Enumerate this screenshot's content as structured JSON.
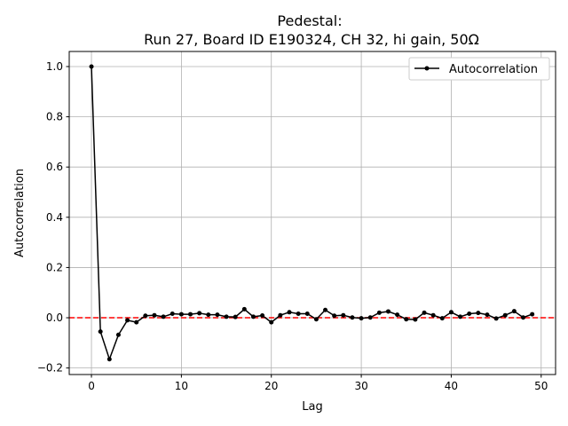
{
  "chart_data": {
    "type": "line",
    "title": "Pedestal:",
    "subtitle": "Run 27, Board ID E190324, CH 32, hi gain, 50Ω",
    "xlabel": "Lag",
    "ylabel": "Autocorrelation",
    "xlim": [
      -2.47,
      51.6
    ],
    "ylim": [
      -0.226,
      1.06
    ],
    "xticks": [
      0,
      10,
      20,
      30,
      40,
      50
    ],
    "xtick_labels": [
      "0",
      "10",
      "20",
      "30",
      "40",
      "50"
    ],
    "yticks": [
      -0.2,
      0.0,
      0.2,
      0.4,
      0.6,
      0.8,
      1.0
    ],
    "ytick_labels": [
      "−0.2",
      "0.0",
      "0.2",
      "0.4",
      "0.6",
      "0.8",
      "1.0"
    ],
    "grid": true,
    "legend_placement": "top-right",
    "reference_line": {
      "y": 0,
      "color": "#ff0000",
      "style": "dashed"
    },
    "series": [
      {
        "name": "Autocorrelation",
        "color": "#000000",
        "x": [
          0,
          1,
          2,
          3,
          4,
          5,
          6,
          7,
          8,
          9,
          10,
          11,
          12,
          13,
          14,
          15,
          16,
          17,
          18,
          19,
          20,
          21,
          22,
          23,
          24,
          25,
          26,
          27,
          28,
          29,
          30,
          31,
          32,
          33,
          34,
          35,
          36,
          37,
          38,
          39,
          40,
          41,
          42,
          43,
          44,
          45,
          46,
          47,
          48,
          49
        ],
        "values": [
          1.0,
          -0.055,
          -0.165,
          -0.068,
          -0.01,
          -0.018,
          0.008,
          0.01,
          0.004,
          0.016,
          0.014,
          0.014,
          0.018,
          0.012,
          0.012,
          0.004,
          0.003,
          0.034,
          0.004,
          0.009,
          -0.018,
          0.01,
          0.022,
          0.016,
          0.016,
          -0.006,
          0.031,
          0.008,
          0.01,
          0.001,
          -0.002,
          0.001,
          0.02,
          0.025,
          0.012,
          -0.006,
          -0.007,
          0.02,
          0.01,
          -0.002,
          0.022,
          0.004,
          0.016,
          0.019,
          0.012,
          -0.003,
          0.01,
          0.026,
          0.001,
          0.014
        ]
      }
    ]
  }
}
